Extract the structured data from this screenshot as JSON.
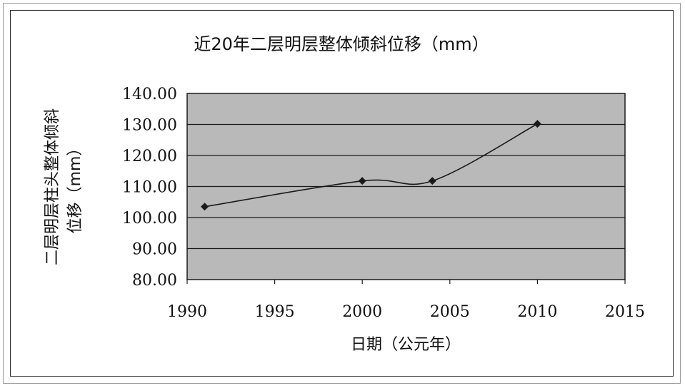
{
  "chart_data": {
    "type": "line",
    "title": "近20年二层明层整体倾斜位移（mm）",
    "xlabel": "日期（公元年）",
    "ylabel_lines": [
      "二层明层柱头整体倾斜",
      "位移（mm）"
    ],
    "xlim": [
      1990,
      2015
    ],
    "ylim": [
      80,
      140
    ],
    "x_ticks": [
      "1990",
      "1995",
      "2000",
      "2005",
      "2010",
      "2015"
    ],
    "y_ticks": [
      "80.00",
      "90.00",
      "100.00",
      "110.00",
      "120.00",
      "130.00",
      "140.00"
    ],
    "grid": true,
    "series": [
      {
        "color": "#1a1a1a",
        "marker": "diamond",
        "smooth": true,
        "x": [
          1991,
          2000,
          2004,
          2010
        ],
        "y": [
          103.5,
          111.8,
          111.8,
          130.2
        ]
      }
    ],
    "colors": {
      "plot_bg": "#b9b9b9",
      "grid": "#1a1a1a",
      "line": "#1a1a1a"
    }
  }
}
